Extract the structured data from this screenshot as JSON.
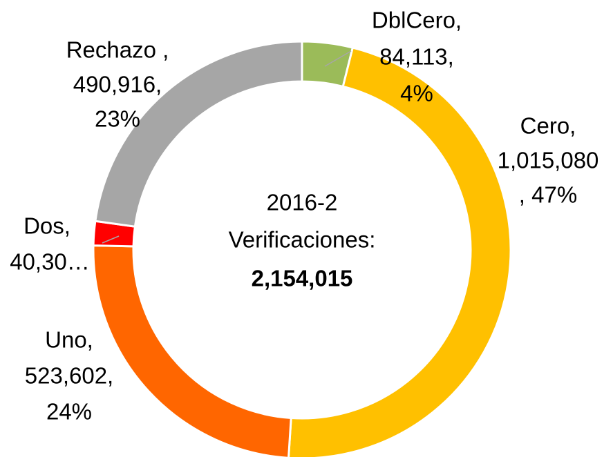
{
  "chart_data": {
    "type": "donut",
    "values": [
      84113,
      1015080,
      523602,
      40304,
      490916
    ],
    "colors": [
      "#9bbb59",
      "#ffc000",
      "#ff6600",
      "#ff0000",
      "#a6a6a6"
    ],
    "labels": [
      [
        "DblCero,",
        "84,113,",
        "4%"
      ],
      [
        "Cero,",
        "1,015,080",
        ", 47%"
      ],
      [
        "Uno,",
        "523,602,",
        "24%"
      ],
      [
        "Dos,",
        "40,30…"
      ],
      [
        "Rechazo ,",
        "490,916,",
        "23%"
      ]
    ],
    "center_label": [
      "2016-2",
      "Verificaciones:"
    ],
    "total_label": "2,154,015"
  }
}
